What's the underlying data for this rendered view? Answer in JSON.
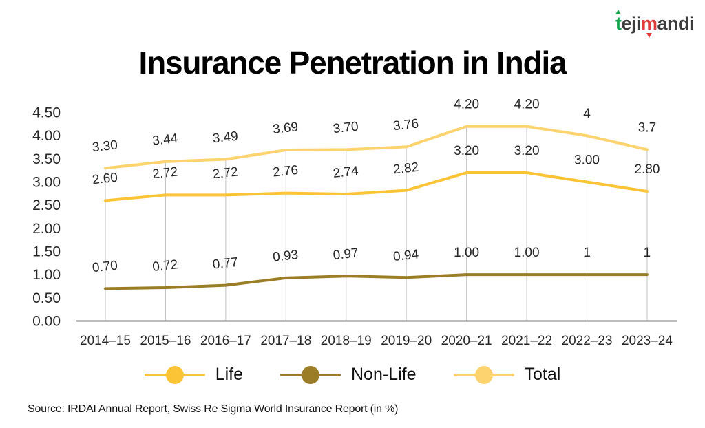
{
  "logo": {
    "part1": "t",
    "part2": "eji",
    "part3": "m",
    "part4": "andi"
  },
  "title": "Insurance Penetration in India",
  "source": "Source: IRDAI Annual Report, Swiss Re Sigma World Insurance Report (in %)",
  "legend": {
    "items": [
      {
        "label": "Life",
        "color": "#FBC437"
      },
      {
        "label": "Non-Life",
        "color": "#9A7D26"
      },
      {
        "label": "Total",
        "color": "#FCD36F"
      }
    ]
  },
  "chart_data": {
    "type": "line",
    "title": "Insurance Penetration in India",
    "unit": "%",
    "categories": [
      "2014–15",
      "2015–16",
      "2016–17",
      "2017–18",
      "2018–19",
      "2019–20",
      "2020–21",
      "2021–22",
      "2022–23",
      "2023–24"
    ],
    "series": [
      {
        "name": "Life",
        "color": "#FBC437",
        "values": [
          2.6,
          2.72,
          2.72,
          2.76,
          2.74,
          2.82,
          3.2,
          3.2,
          3.0,
          2.8
        ],
        "labels": [
          "2.60",
          "2.72",
          "2.72",
          "2.76",
          "2.74",
          "2.82",
          "3.20",
          "3.20",
          "3.00",
          "2.80"
        ]
      },
      {
        "name": "Non-Life",
        "color": "#9A7D26",
        "values": [
          0.7,
          0.72,
          0.77,
          0.93,
          0.97,
          0.94,
          1.0,
          1.0,
          1,
          1
        ],
        "labels": [
          "0.70",
          "0.72",
          "0.77",
          "0.93",
          "0.97",
          "0.94",
          "1.00",
          "1.00",
          "1",
          "1"
        ]
      },
      {
        "name": "Total",
        "color": "#FCD36F",
        "values": [
          3.3,
          3.44,
          3.49,
          3.69,
          3.7,
          3.76,
          4.2,
          4.2,
          4,
          3.7
        ],
        "labels": [
          "3.30",
          "3.44",
          "3.49",
          "3.69",
          "3.70",
          "3.76",
          "4.20",
          "4.20",
          "4",
          "3.7"
        ]
      }
    ],
    "ylim": [
      0,
      4.5
    ],
    "ytick_step": 0.5,
    "yticks": [
      "0.00",
      "0.50",
      "1.00",
      "1.50",
      "2.00",
      "2.50",
      "3.00",
      "3.50",
      "4.00",
      "4.50"
    ],
    "grid": "vertical drop lines from Total points to x-axis",
    "legend_position": "bottom",
    "axis_color": "#7F7F7F",
    "gridline_color": "#C1C1C1"
  }
}
